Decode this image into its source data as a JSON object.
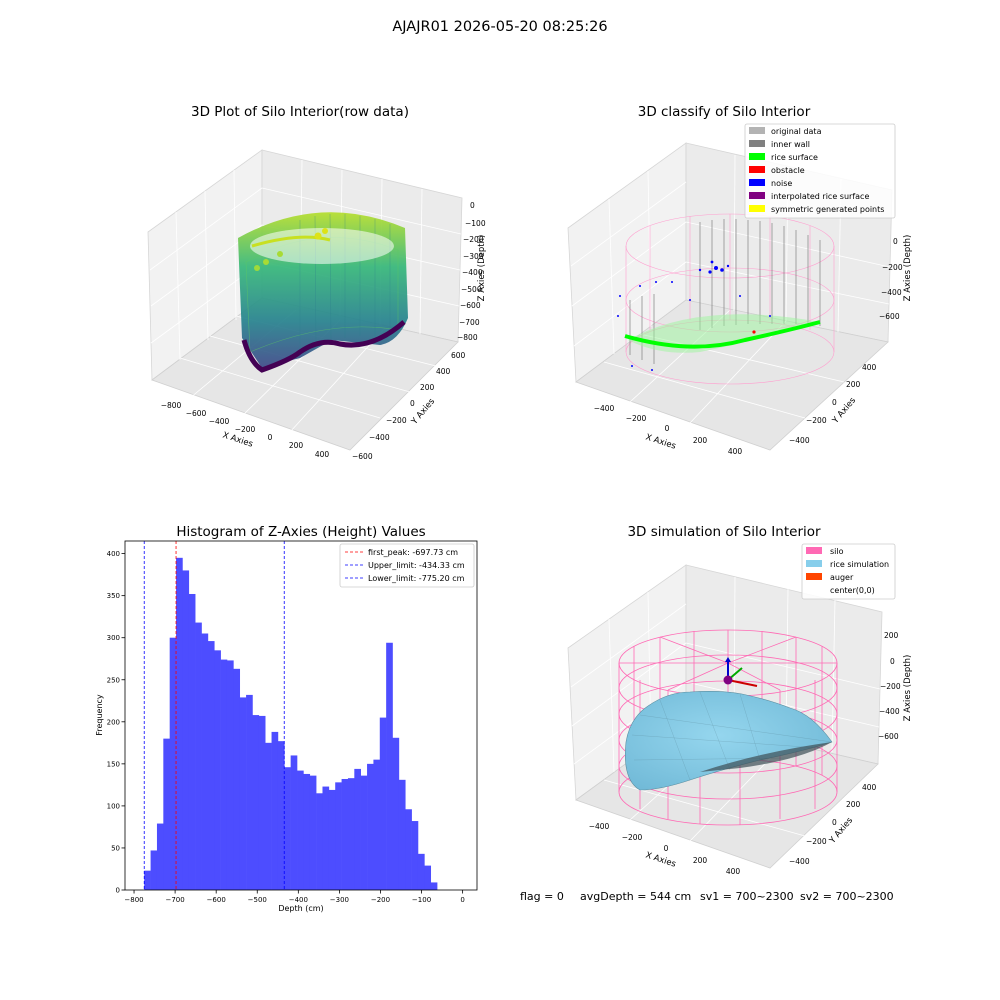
{
  "figure": {
    "suptitle": "AJAJR01 2026-05-20 08:25:26",
    "footer": {
      "flag": "flag = 0",
      "avg_depth": "avgDepth = 544 cm",
      "sv1": "sv1 = 700~2300",
      "sv2": "sv2 = 700~2300"
    }
  },
  "panels": {
    "raw": {
      "title": "3D Plot of Silo Interior(row data)",
      "xlabel": "X Axies",
      "ylabel": "Y Axies",
      "zlabel": "Z Axies (Depth)",
      "xticks": [
        "−800",
        "−600",
        "−400",
        "−200",
        "0",
        "200",
        "400"
      ],
      "yticks": [
        "600",
        "400",
        "200",
        "0",
        "−200",
        "−400",
        "−600"
      ],
      "zticks": [
        "0",
        "−100",
        "−200",
        "−300",
        "−400",
        "−500",
        "−600",
        "−700",
        "−800"
      ]
    },
    "classify": {
      "title": "3D classify of Silo Interior",
      "xlabel": "X Axies",
      "ylabel": "Y Axies",
      "zlabel": "Z Axies (Depth)",
      "xticks": [
        "−400",
        "−200",
        "0",
        "200",
        "400"
      ],
      "yticks": [
        "400",
        "200",
        "0",
        "−200",
        "−400"
      ],
      "zticks": [
        "0",
        "−200",
        "−400",
        "−600"
      ],
      "legend": [
        {
          "label": "original data",
          "color": "#b3b3b3"
        },
        {
          "label": "inner wall",
          "color": "#808080"
        },
        {
          "label": "rice surface",
          "color": "#00ff00"
        },
        {
          "label": "obstacle",
          "color": "#ff0000"
        },
        {
          "label": "noise",
          "color": "#0000ff"
        },
        {
          "label": "interpolated rice surface",
          "color": "#800080"
        },
        {
          "label": "symmetric generated points",
          "color": "#ffff00"
        }
      ]
    },
    "simulation": {
      "title": "3D simulation of Silo Interior",
      "xlabel": "X Axies",
      "ylabel": "Y Axies",
      "zlabel": "Z Axies (Depth)",
      "xticks": [
        "−400",
        "−200",
        "0",
        "200",
        "400"
      ],
      "yticks": [
        "400",
        "200",
        "0",
        "−200",
        "−400"
      ],
      "zticks": [
        "200",
        "0",
        "−200",
        "−400",
        "−600"
      ],
      "legend": [
        {
          "label": "silo",
          "color": "#ff69b4"
        },
        {
          "label": "rice simulation",
          "color": "#87ceeb"
        },
        {
          "label": "auger",
          "color": "#ff4500"
        },
        {
          "label": "center(0,0)",
          "color": ""
        }
      ]
    }
  },
  "chart_data": {
    "type": "bar",
    "title": "Histogram of Z-Axies (Height) Values",
    "xlabel": "Depth (cm)",
    "ylabel": "Frequency",
    "xlim": [
      -822,
      35
    ],
    "ylim": [
      0,
      415
    ],
    "xticks": [
      -800,
      -700,
      -600,
      -500,
      -400,
      -300,
      -200,
      -100,
      0
    ],
    "xtick_labels": [
      "−800",
      "−700",
      "−600",
      "−500",
      "−400",
      "−300",
      "−200",
      "−100",
      "0"
    ],
    "yticks": [
      0,
      50,
      100,
      150,
      200,
      250,
      300,
      350,
      400
    ],
    "bin_start": -775.2,
    "bin_width": 15.5,
    "bar_color": "#4d4dff",
    "values": [
      23,
      47,
      79,
      180,
      300,
      395,
      380,
      352,
      318,
      305,
      296,
      285,
      274,
      273,
      263,
      229,
      232,
      208,
      207,
      175,
      188,
      177,
      146,
      160,
      142,
      138,
      136,
      115,
      123,
      119,
      128,
      132,
      133,
      144,
      136,
      150,
      155,
      205,
      294,
      181,
      131,
      96,
      82,
      43,
      29,
      9
    ],
    "lines": [
      {
        "label": "first_peak: -697.73 cm",
        "x": -697.73,
        "color": "#ff0000"
      },
      {
        "label": "Upper_limit: -434.33 cm",
        "x": -434.33,
        "color": "#0000ff"
      },
      {
        "label": "Lower_limit: -775.20 cm",
        "x": -775.2,
        "color": "#0000ff"
      }
    ]
  }
}
